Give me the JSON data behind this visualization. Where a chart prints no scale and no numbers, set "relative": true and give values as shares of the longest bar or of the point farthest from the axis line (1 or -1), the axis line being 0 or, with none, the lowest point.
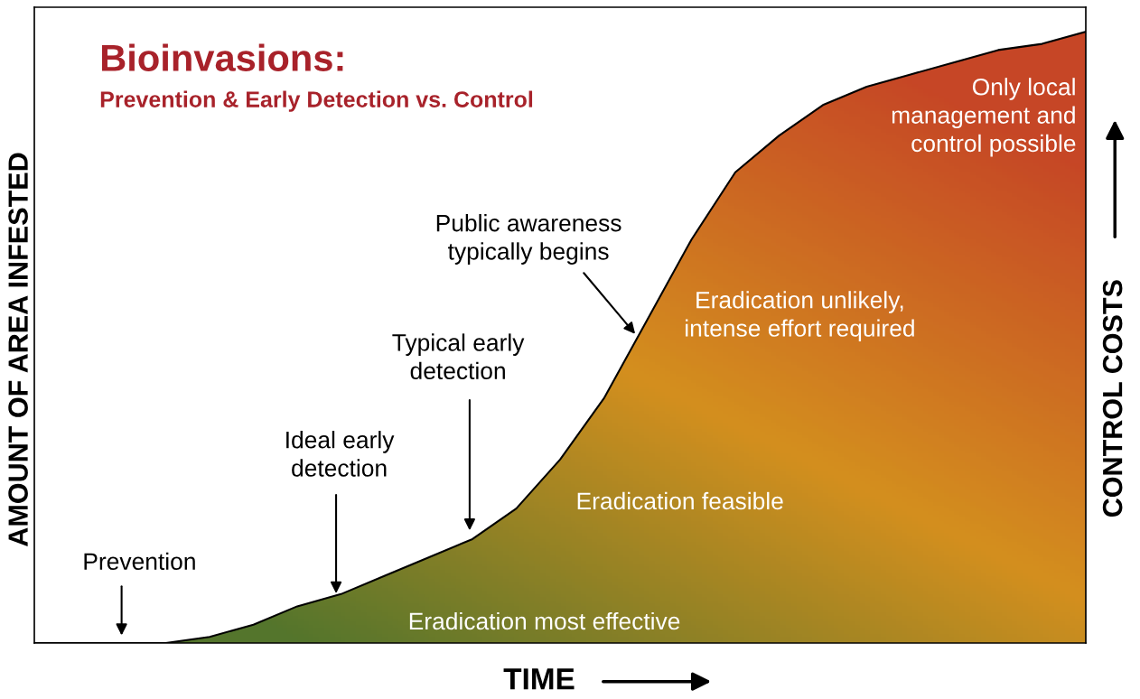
{
  "chart_data": {
    "type": "area",
    "relative": true,
    "title": "Bioinvasions:",
    "subtitle": "Prevention & Early Detection vs. Control",
    "xlabel": "TIME",
    "ylabel": "AMOUNT OF AREA INFESTED",
    "y2label": "CONTROL COSTS",
    "categories": [
      null,
      null,
      null,
      null,
      null,
      null,
      null,
      null,
      null,
      null,
      null,
      null,
      null,
      null,
      null,
      null,
      null,
      null,
      null,
      null,
      null,
      null,
      null,
      null,
      null
    ],
    "series": [
      {
        "color": "#d4901f",
        "values": [
          0,
          0,
          0,
          0,
          0.01,
          0.03,
          0.06,
          0.08,
          0.11,
          0.14,
          0.17,
          0.22,
          0.3,
          0.4,
          0.53,
          0.66,
          0.77,
          0.83,
          0.88,
          0.91,
          0.93,
          0.95,
          0.97,
          0.98,
          1
        ]
      }
    ],
    "annotations": [
      "Prevention",
      "Ideal early\ndetection",
      "Typical early\ndetection",
      "Public awareness\ntypically begins",
      "Eradication unlikely,\nintense effort required",
      "Eradication feasible",
      "Eradication most effective",
      "Only local\nmanagement and\ncontrol possible"
    ],
    "line_style": "solid"
  }
}
